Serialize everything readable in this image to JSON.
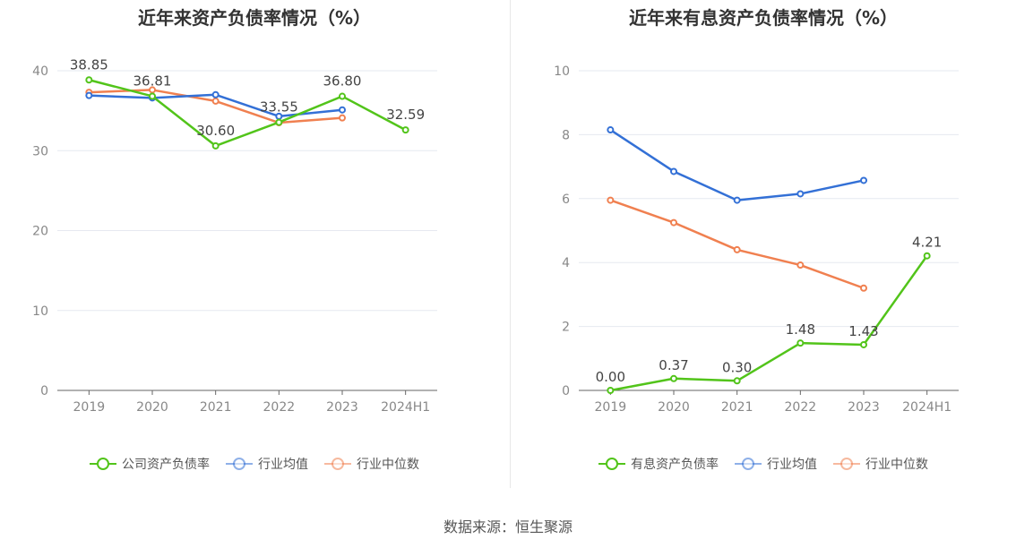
{
  "source": "数据来源：恒生聚源",
  "chart_data": [
    {
      "type": "line",
      "title": "近年来资产负债率情况（%）",
      "categories": [
        "2019",
        "2020",
        "2021",
        "2022",
        "2023",
        "2024H1"
      ],
      "ylim": [
        0,
        40
      ],
      "yticks": [
        0,
        10,
        20,
        30,
        40
      ],
      "grid": true,
      "legend_position": "bottom",
      "series": [
        {
          "name": "公司资产负债率",
          "color": "#52c41a",
          "values": [
            38.85,
            36.81,
            30.6,
            33.55,
            36.8,
            32.59
          ],
          "labels": [
            "38.85",
            "36.81",
            "30.60",
            "33.55",
            "36.80",
            "32.59"
          ]
        },
        {
          "name": "行业均值",
          "color": "#3370d6",
          "values": [
            36.9,
            36.6,
            37.0,
            34.3,
            35.1,
            null
          ]
        },
        {
          "name": "行业中位数",
          "color": "#f08050",
          "values": [
            37.3,
            37.6,
            36.2,
            33.5,
            34.1,
            null
          ]
        }
      ]
    },
    {
      "type": "line",
      "title": "近年来有息资产负债率情况（%）",
      "categories": [
        "2019",
        "2020",
        "2021",
        "2022",
        "2023",
        "2024H1"
      ],
      "ylim": [
        0,
        10
      ],
      "yticks": [
        0,
        2,
        4,
        6,
        8,
        10
      ],
      "grid": true,
      "legend_position": "bottom",
      "series": [
        {
          "name": "有息资产负债率",
          "color": "#52c41a",
          "values": [
            0.0,
            0.37,
            0.3,
            1.48,
            1.43,
            4.21
          ],
          "labels": [
            "0.00",
            "0.37",
            "0.30",
            "1.48",
            "1.43",
            "4.21"
          ]
        },
        {
          "name": "行业均值",
          "color": "#3370d6",
          "values": [
            8.15,
            6.85,
            5.95,
            6.15,
            6.57,
            null
          ]
        },
        {
          "name": "行业中位数",
          "color": "#f08050",
          "values": [
            5.95,
            5.25,
            4.4,
            3.92,
            3.2,
            null
          ]
        }
      ]
    }
  ]
}
